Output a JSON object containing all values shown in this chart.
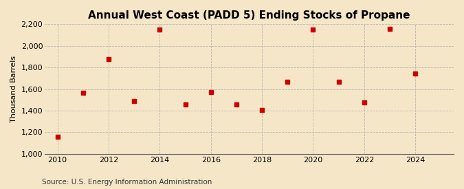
{
  "title": "Annual West Coast (PADD 5) Ending Stocks of Propane",
  "ylabel": "Thousand Barrels",
  "source": "Source: U.S. Energy Information Administration",
  "background_color": "#f5e6c8",
  "years": [
    2010,
    2011,
    2012,
    2013,
    2014,
    2015,
    2016,
    2017,
    2018,
    2019,
    2020,
    2021,
    2022,
    2023,
    2024
  ],
  "values": [
    1160,
    1565,
    1880,
    1490,
    2150,
    1460,
    1570,
    1455,
    1405,
    1670,
    2150,
    1665,
    1475,
    2160,
    1745
  ],
  "marker_color": "#cc0000",
  "marker_size": 5,
  "ylim": [
    1000,
    2200
  ],
  "yticks": [
    1000,
    1200,
    1400,
    1600,
    1800,
    2000,
    2200
  ],
  "xticks": [
    2010,
    2012,
    2014,
    2016,
    2018,
    2020,
    2022,
    2024
  ],
  "xlim": [
    2009.5,
    2025.5
  ],
  "grid_color": "#aaaaaa",
  "title_fontsize": 11,
  "axis_fontsize": 8,
  "tick_fontsize": 8,
  "source_fontsize": 7.5
}
